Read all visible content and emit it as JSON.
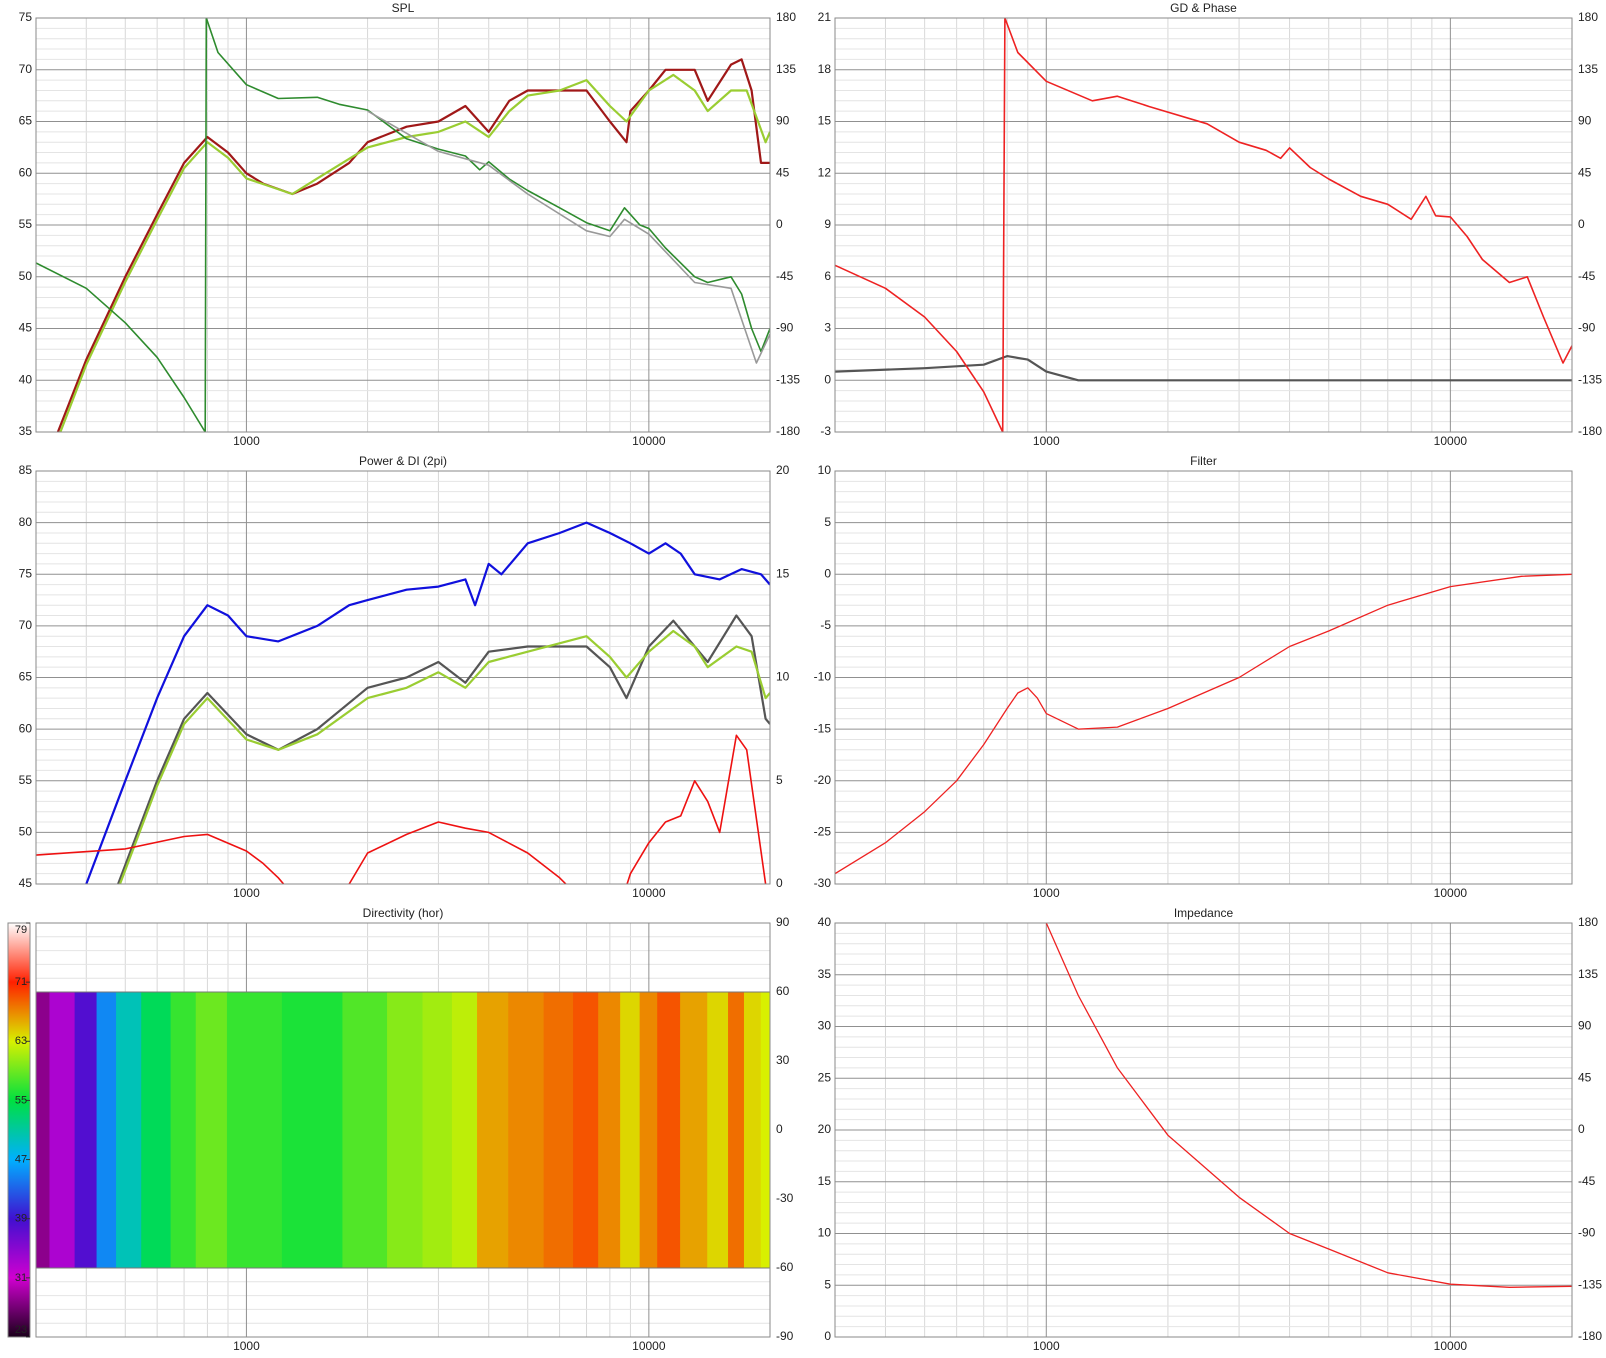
{
  "chart_data": [
    {
      "type": "line",
      "title": "SPL",
      "xlog": true,
      "xlim": [
        300,
        20000
      ],
      "xticks": [
        1000,
        10000
      ],
      "ylim": [
        35,
        75
      ],
      "yticks": [
        35,
        40,
        45,
        50,
        55,
        60,
        65,
        70,
        75
      ],
      "y2lim": [
        -180,
        180
      ],
      "y2ticks": [
        -180,
        -135,
        -90,
        -45,
        0,
        45,
        90,
        135,
        180
      ],
      "series": [
        {
          "color": "#a01818",
          "x": [
            340,
            400,
            500,
            600,
            700,
            800,
            900,
            1000,
            1100,
            1300,
            1500,
            1800,
            2000,
            2500,
            3000,
            3500,
            4000,
            4500,
            5000,
            6000,
            7000,
            8000,
            8800,
            9000,
            10000,
            11000,
            13000,
            14000,
            16000,
            17000,
            18000,
            19000,
            20000
          ],
          "values": [
            35,
            42,
            50,
            56,
            61,
            63.5,
            62,
            60,
            59,
            58,
            59,
            61,
            63,
            64.5,
            65,
            66.5,
            64,
            67,
            68,
            68,
            68,
            65,
            63,
            66,
            68,
            70,
            70,
            67,
            70.5,
            71,
            68,
            61,
            61
          ]
        },
        {
          "color": "#9acd32",
          "x": [
            345,
            400,
            500,
            600,
            700,
            800,
            900,
            1000,
            1300,
            1500,
            2000,
            2500,
            3000,
            3500,
            4000,
            4500,
            5000,
            6000,
            7000,
            8000,
            8800,
            10000,
            11500,
            13000,
            14000,
            16000,
            17500,
            19500,
            20000
          ],
          "values": [
            35,
            41.5,
            49.5,
            55.5,
            60.5,
            63,
            61.5,
            59.5,
            58,
            59.5,
            62.5,
            63.5,
            64,
            65,
            63.5,
            66,
            67.5,
            68,
            69,
            66.5,
            65,
            68,
            69.5,
            68,
            66,
            68,
            68,
            63,
            64
          ]
        },
        {
          "color": "#2e8b2e",
          "axis": "y2",
          "x": [
            300,
            400,
            500,
            600,
            700,
            790,
            795,
            850,
            1000,
            1200,
            1500,
            1700,
            2000,
            2500,
            3000,
            3500,
            3800,
            4000,
            4500,
            5000,
            6000,
            7000,
            8000,
            8700,
            9500,
            10000,
            11000,
            13000,
            14000,
            16000,
            17000,
            18000,
            19000,
            20000
          ],
          "values": [
            -33,
            -55,
            -85,
            -115,
            -150,
            -180,
            180,
            150,
            122,
            110,
            111,
            105,
            100,
            75,
            66,
            60,
            48,
            55,
            40,
            30,
            15,
            2,
            -5,
            15,
            0,
            -3,
            -20,
            -45,
            -50,
            -45,
            -60,
            -90,
            -110,
            -90
          ]
        },
        {
          "color": "#999999",
          "axis": "y2",
          "x": [
            2000,
            3000,
            4000,
            5000,
            7000,
            8000,
            8700,
            10000,
            13000,
            16000,
            18500,
            20000
          ],
          "values": [
            99,
            64,
            52,
            27,
            -5,
            -10,
            5,
            -8,
            -50,
            -55,
            -120,
            -95
          ]
        }
      ]
    },
    {
      "type": "line",
      "title": "GD & Phase",
      "xlog": true,
      "xlim": [
        300,
        20000
      ],
      "xticks": [
        1000,
        10000
      ],
      "ylim": [
        -3,
        21
      ],
      "yticks": [
        -3,
        0,
        3,
        6,
        9,
        12,
        15,
        18,
        21
      ],
      "y2lim": [
        -180,
        180
      ],
      "y2ticks": [
        -180,
        -135,
        -90,
        -45,
        0,
        45,
        90,
        135,
        180
      ],
      "series": [
        {
          "color": "#555555",
          "x": [
            300,
            500,
            700,
            800,
            900,
            1000,
            1200,
            2000,
            5000,
            20000
          ],
          "values": [
            0.5,
            0.7,
            0.9,
            1.4,
            1.2,
            0.5,
            0,
            0,
            0,
            0
          ]
        },
        {
          "color": "#ee2222",
          "axis": "y2",
          "x": [
            300,
            400,
            500,
            600,
            700,
            780,
            790,
            850,
            1000,
            1300,
            1500,
            1800,
            2500,
            3000,
            3500,
            3800,
            4000,
            4500,
            5000,
            6000,
            7000,
            8000,
            8700,
            9200,
            10000,
            11000,
            12000,
            14000,
            15500,
            17000,
            19000,
            20000
          ],
          "values": [
            -35,
            -55,
            -80,
            -110,
            -145,
            -180,
            180,
            150,
            125,
            108,
            112,
            103,
            88,
            72,
            65,
            58,
            67,
            50,
            40,
            25,
            18,
            5,
            25,
            8,
            7,
            -10,
            -30,
            -50,
            -45,
            -80,
            -120,
            -105
          ]
        }
      ]
    },
    {
      "type": "line",
      "title": "Power & DI (2pi)",
      "xlog": true,
      "xlim": [
        300,
        20000
      ],
      "xticks": [
        1000,
        10000
      ],
      "ylim": [
        45,
        85
      ],
      "yticks": [
        45,
        50,
        55,
        60,
        65,
        70,
        75,
        80,
        85
      ],
      "y2lim": [
        0,
        20
      ],
      "y2ticks": [
        0,
        5,
        10,
        15,
        20
      ],
      "series": [
        {
          "color": "#1010dd",
          "x": [
            400,
            500,
            600,
            700,
            800,
            900,
            1000,
            1200,
            1500,
            1800,
            2000,
            2500,
            3000,
            3500,
            3700,
            4000,
            4300,
            5000,
            6000,
            7000,
            8000,
            9000,
            10000,
            11000,
            12000,
            13000,
            15000,
            17000,
            19000,
            20000
          ],
          "values": [
            45,
            55,
            63,
            69,
            72,
            71,
            69,
            68.5,
            70,
            72,
            72.5,
            73.5,
            73.8,
            74.5,
            72,
            76,
            75,
            78,
            79,
            80,
            79,
            78,
            77,
            78,
            77,
            75,
            74.5,
            75.5,
            75,
            74
          ]
        },
        {
          "color": "#555555",
          "x": [
            480,
            600,
            700,
            800,
            1000,
            1200,
            1500,
            2000,
            2500,
            3000,
            3500,
            4000,
            5000,
            7000,
            8000,
            8800,
            10000,
            11500,
            13000,
            14000,
            16500,
            18000,
            19500,
            20000
          ],
          "values": [
            45,
            55,
            61,
            63.5,
            59.5,
            58,
            60,
            64,
            65,
            66.5,
            64.5,
            67.5,
            68,
            68,
            66,
            63,
            68,
            70.5,
            68,
            66.5,
            71,
            69,
            61,
            60.5
          ]
        },
        {
          "color": "#9acd32",
          "x": [
            485,
            600,
            700,
            800,
            1000,
            1200,
            1500,
            2000,
            2500,
            3000,
            3500,
            4000,
            5000,
            7000,
            8000,
            8800,
            10000,
            11500,
            13000,
            14000,
            16500,
            18000,
            19500,
            20000
          ],
          "values": [
            45,
            54.5,
            60.5,
            63,
            59,
            58,
            59.5,
            63,
            64,
            65.5,
            64,
            66.5,
            67.5,
            69,
            67,
            65,
            67.5,
            69.5,
            68,
            66,
            68,
            67.5,
            63,
            63.5
          ]
        },
        {
          "color": "#ee1111",
          "axis": "y2",
          "x": [
            300,
            500,
            700,
            800,
            1000,
            1100,
            1200,
            1300,
            1500,
            1800,
            2000,
            2500,
            3000,
            3500,
            4000,
            5000,
            6000,
            7000,
            8500,
            9000,
            10000,
            11000,
            12000,
            13000,
            14000,
            15000,
            16500,
            17500,
            19500,
            20000
          ],
          "values": [
            1.4,
            1.7,
            2.3,
            2.4,
            1.6,
            1,
            0.3,
            -0.5,
            -0.5,
            0,
            1.5,
            2.4,
            3,
            2.7,
            2.5,
            1.5,
            0.3,
            -1,
            -1,
            0.5,
            2,
            3,
            3.3,
            5,
            4,
            2.5,
            7.2,
            6.5,
            0,
            -1
          ]
        }
      ]
    },
    {
      "type": "line",
      "title": "Filter",
      "xlog": true,
      "xlim": [
        300,
        20000
      ],
      "xticks": [
        1000,
        10000
      ],
      "ylim": [
        -30,
        10
      ],
      "yticks": [
        -30,
        -25,
        -20,
        -15,
        -10,
        -5,
        0,
        5,
        10
      ],
      "series": [
        {
          "color": "#ee2222",
          "x": [
            300,
            400,
            500,
            600,
            700,
            800,
            850,
            900,
            950,
            1000,
            1200,
            1500,
            2000,
            3000,
            4000,
            5000,
            7000,
            10000,
            15000,
            20000
          ],
          "values": [
            -29,
            -26,
            -23,
            -20,
            -16.5,
            -13,
            -11.5,
            -11,
            -12,
            -13.5,
            -15,
            -14.8,
            -13,
            -10,
            -7,
            -5.5,
            -3,
            -1.2,
            -0.2,
            0
          ]
        }
      ]
    },
    {
      "type": "heatmap",
      "title": "Directivity (hor)",
      "xlog": true,
      "xlim": [
        300,
        20000
      ],
      "xticks": [
        1000,
        10000
      ],
      "zlim": [
        23,
        79
      ],
      "zticks": [
        23,
        31,
        39,
        47,
        55,
        63,
        71,
        79
      ],
      "colors": [
        "#1a001a",
        "#d000d0",
        "#4010d0",
        "#00b0ff",
        "#00e040",
        "#d8f000",
        "#ff2000",
        "#ffffff"
      ],
      "y2lim": [
        -90,
        90
      ],
      "y2ticks": [
        -90,
        -60,
        -30,
        0,
        30,
        60,
        90
      ],
      "angle_range": [
        -60,
        60
      ],
      "x": [
        300,
        350,
        400,
        450,
        500,
        600,
        700,
        800,
        1000,
        1500,
        2000,
        2500,
        3000,
        3500,
        4000,
        5000,
        6000,
        7000,
        8000,
        9000,
        10000,
        11000,
        13000,
        15000,
        16500,
        18000,
        20000
      ],
      "values": [
        28,
        33,
        38,
        45,
        50,
        54,
        57,
        59,
        57,
        56,
        58,
        60,
        61,
        62,
        66,
        67,
        68,
        69,
        67,
        64,
        67,
        69,
        66,
        64,
        68,
        64,
        63
      ]
    },
    {
      "type": "line",
      "title": "Impedance",
      "xlog": true,
      "xlim": [
        300,
        20000
      ],
      "xticks": [
        1000,
        10000
      ],
      "ylim": [
        0,
        40
      ],
      "yticks": [
        0,
        5,
        10,
        15,
        20,
        25,
        30,
        35,
        40
      ],
      "y2lim": [
        -180,
        180
      ],
      "y2ticks": [
        -180,
        -135,
        -90,
        -45,
        0,
        45,
        90,
        135,
        180
      ],
      "series": [
        {
          "color": "#ee2222",
          "x": [
            1000,
            1200,
            1500,
            2000,
            3000,
            4000,
            5000,
            7000,
            10000,
            14000,
            20000
          ],
          "values": [
            40,
            33,
            26,
            19.5,
            13.5,
            10,
            8.5,
            6.2,
            5.1,
            4.8,
            4.9
          ]
        }
      ]
    }
  ]
}
